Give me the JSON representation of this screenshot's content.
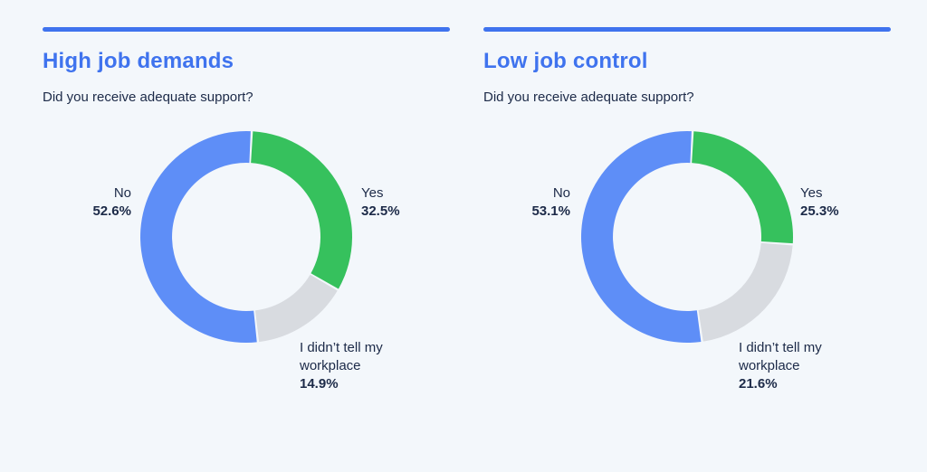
{
  "chart_data": [
    {
      "type": "pie",
      "title": "High job demands",
      "subtitle": "Did you receive adequate support?",
      "categories": [
        "Yes",
        "I didn’t tell my workplace",
        "No"
      ],
      "values": [
        32.5,
        14.9,
        52.6
      ],
      "labels": [
        "32.5%",
        "14.9%",
        "52.6%"
      ],
      "colors": [
        "#36c15d",
        "#d8dbe0",
        "#5e8ef7"
      ],
      "legend": "none",
      "donut": true
    },
    {
      "type": "pie",
      "title": "Low job control",
      "subtitle": "Did you receive adequate support?",
      "categories": [
        "Yes",
        "I didn’t tell my workplace",
        "No"
      ],
      "values": [
        25.3,
        21.6,
        53.1
      ],
      "labels": [
        "25.3%",
        "21.6%",
        "53.1%"
      ],
      "colors": [
        "#36c15d",
        "#d8dbe0",
        "#5e8ef7"
      ],
      "legend": "none",
      "donut": true
    }
  ],
  "label_lines": {
    "dont_tell_line1": "I didn’t tell my",
    "dont_tell_line2": "workplace"
  }
}
